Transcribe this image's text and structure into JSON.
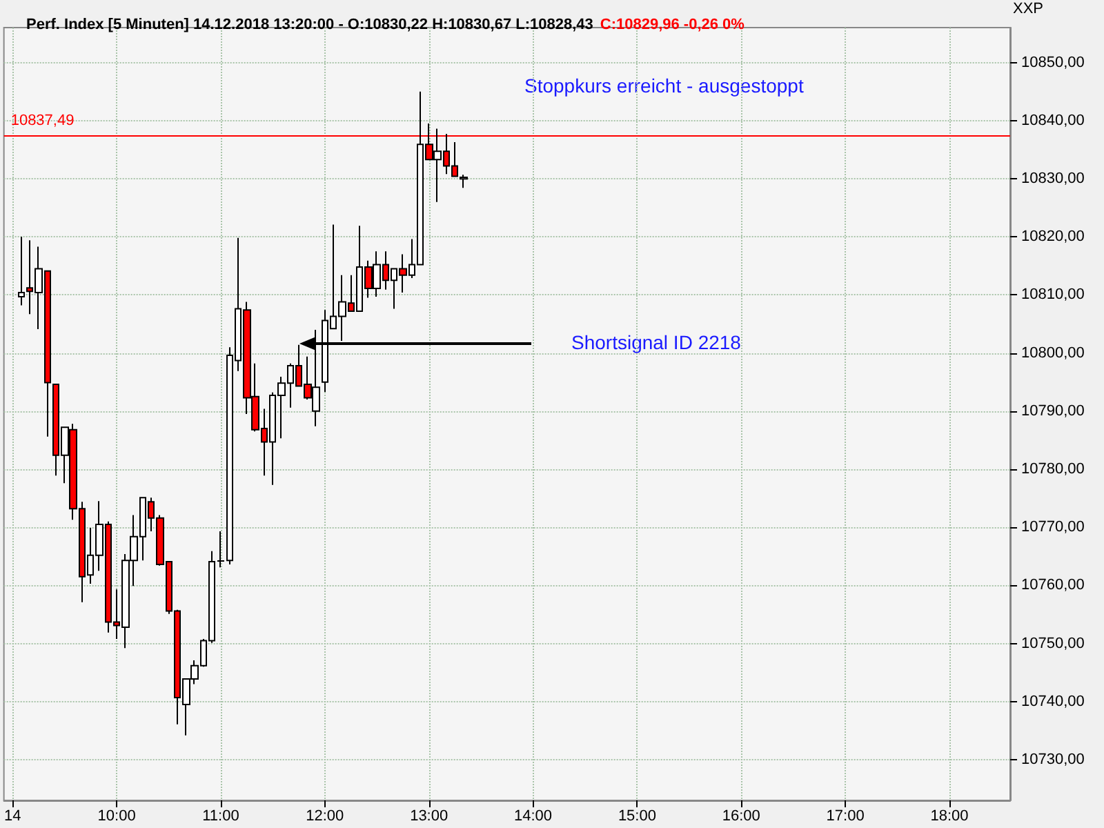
{
  "chart_data": {
    "type": "candlestick",
    "title": "Perf. Index [5 Minuten] 14.12.2018 13:20:00 - O:10830,22 H:10830,67 L:10828,43",
    "subtitle": "C:10829,96 -0,26 0%",
    "ylabel": "XXP",
    "x": [
      "2018-12-14T09:05",
      "2018-12-14T09:10",
      "2018-12-14T09:15",
      "2018-12-14T09:20",
      "2018-12-14T09:25",
      "2018-12-14T09:30",
      "2018-12-14T09:35",
      "2018-12-14T09:40",
      "2018-12-14T09:45",
      "2018-12-14T09:50",
      "2018-12-14T09:55",
      "2018-12-14T10:00",
      "2018-12-14T10:05",
      "2018-12-14T10:10",
      "2018-12-14T10:15",
      "2018-12-14T10:20",
      "2018-12-14T10:25",
      "2018-12-14T10:30",
      "2018-12-14T10:35",
      "2018-12-14T10:40",
      "2018-12-14T10:45",
      "2018-12-14T10:50",
      "2018-12-14T10:55",
      "2018-12-14T11:00",
      "2018-12-14T11:05",
      "2018-12-14T11:10",
      "2018-12-14T11:15",
      "2018-12-14T11:20",
      "2018-12-14T11:25",
      "2018-12-14T11:30",
      "2018-12-14T11:35",
      "2018-12-14T11:40",
      "2018-12-14T11:45",
      "2018-12-14T11:50",
      "2018-12-14T11:55",
      "2018-12-14T12:00",
      "2018-12-14T12:05",
      "2018-12-14T12:10",
      "2018-12-14T12:15",
      "2018-12-14T12:20",
      "2018-12-14T12:25",
      "2018-12-14T12:30",
      "2018-12-14T12:35",
      "2018-12-14T12:40",
      "2018-12-14T12:45",
      "2018-12-14T12:50",
      "2018-12-14T12:55",
      "2018-12-14T13:00",
      "2018-12-14T13:05",
      "2018-12-14T13:10",
      "2018-12-14T13:15",
      "2018-12-14T13:20"
    ],
    "ohlc": [
      [
        10809.7,
        10820.0,
        10808.2,
        10810.4
      ],
      [
        10811.2,
        10819.4,
        10806.7,
        10810.6
      ],
      [
        10810.4,
        10818.3,
        10804.1,
        10814.5
      ],
      [
        10814.1,
        10814.1,
        10785.6,
        10794.9
      ],
      [
        10794.6,
        10794.6,
        10778.9,
        10782.4
      ],
      [
        10782.4,
        10787.2,
        10777.6,
        10787.2
      ],
      [
        10786.8,
        10787.8,
        10771.3,
        10773.2
      ],
      [
        10773.2,
        10774.4,
        10757.1,
        10761.5
      ],
      [
        10761.8,
        10769.9,
        10760.3,
        10765.2
      ],
      [
        10765.2,
        10774.5,
        10762.5,
        10770.5
      ],
      [
        10770.5,
        10771.0,
        10751.9,
        10753.7
      ],
      [
        10753.7,
        10759.3,
        10750.8,
        10753.1
      ],
      [
        10752.8,
        10765.4,
        10749.2,
        10764.3
      ],
      [
        10764.3,
        10772.1,
        10759.9,
        10768.4
      ],
      [
        10768.4,
        10775.1,
        10764.3,
        10775.1
      ],
      [
        10774.4,
        10775.1,
        10769.3,
        10771.6
      ],
      [
        10771.6,
        10772.1,
        10763.4,
        10763.6
      ],
      [
        10764.1,
        10764.1,
        10755.1,
        10755.6
      ],
      [
        10755.6,
        10755.8,
        10736.1,
        10740.7
      ],
      [
        10739.5,
        10743.9,
        10734.2,
        10743.9
      ],
      [
        10743.9,
        10747.1,
        10743.0,
        10746.2
      ],
      [
        10746.2,
        10750.8,
        10746.0,
        10750.5
      ],
      [
        10750.5,
        10765.9,
        10750.1,
        10764.1
      ],
      [
        10764.2,
        10769.3,
        10763.1,
        10764.2
      ],
      [
        10764.3,
        10801.0,
        10763.6,
        10799.6
      ],
      [
        10798.7,
        10819.8,
        10796.9,
        10807.6
      ],
      [
        10807.4,
        10808.8,
        10789.5,
        10792.3
      ],
      [
        10792.5,
        10798.2,
        10786.5,
        10786.8
      ],
      [
        10787.0,
        10790.4,
        10778.9,
        10784.7
      ],
      [
        10784.7,
        10793.2,
        10777.3,
        10792.7
      ],
      [
        10792.7,
        10795.9,
        10785.3,
        10794.8
      ],
      [
        10794.8,
        10798.2,
        10790.6,
        10797.8
      ],
      [
        10797.8,
        10801.4,
        10794.3,
        10794.3
      ],
      [
        10794.6,
        10799.4,
        10792.0,
        10792.3
      ],
      [
        10790.0,
        10804.0,
        10787.4,
        10794.1
      ],
      [
        10795.0,
        10807.4,
        10793.3,
        10805.6
      ],
      [
        10804.2,
        10822.1,
        10804.2,
        10806.3
      ],
      [
        10806.3,
        10813.4,
        10802.1,
        10808.8
      ],
      [
        10808.6,
        10813.4,
        10807.2,
        10807.2
      ],
      [
        10807.2,
        10821.9,
        10807.2,
        10814.8
      ],
      [
        10814.8,
        10815.9,
        10809.5,
        10811.1
      ],
      [
        10811.1,
        10817.5,
        10809.7,
        10815.2
      ],
      [
        10815.2,
        10817.5,
        10810.9,
        10812.5
      ],
      [
        10812.5,
        10814.5,
        10807.6,
        10814.5
      ],
      [
        10814.5,
        10817.0,
        10810.4,
        10813.4
      ],
      [
        10813.4,
        10819.6,
        10812.9,
        10815.2
      ],
      [
        10815.2,
        10845.0,
        10815.2,
        10835.9
      ],
      [
        10835.9,
        10839.5,
        10833.3,
        10833.3
      ],
      [
        10833.3,
        10838.6,
        10826.0,
        10834.7
      ],
      [
        10834.7,
        10837.7,
        10830.8,
        10832.2
      ],
      [
        10832.2,
        10836.3,
        10830.4,
        10830.4
      ],
      [
        10830.22,
        10830.67,
        10828.43,
        10829.96
      ]
    ],
    "colors": [
      "#ffffff",
      "#ff0000",
      "#ffffff",
      "#ff0000",
      "#ff0000",
      "#ffffff",
      "#ff0000",
      "#ff0000",
      "#ffffff",
      "#ffffff",
      "#ff0000",
      "#ff0000",
      "#ffffff",
      "#ffffff",
      "#ffffff",
      "#ff0000",
      "#ff0000",
      "#ff0000",
      "#ff0000",
      "#ffffff",
      "#ffffff",
      "#ffffff",
      "#ffffff",
      "#000000",
      "#ffffff",
      "#ffffff",
      "#ff0000",
      "#ff0000",
      "#ff0000",
      "#ffffff",
      "#ffffff",
      "#ffffff",
      "#ff0000",
      "#ff0000",
      "#ffffff",
      "#ffffff",
      "#ffffff",
      "#ffffff",
      "#ff0000",
      "#ffffff",
      "#ff0000",
      "#ffffff",
      "#ff0000",
      "#ffffff",
      "#ff0000",
      "#ffffff",
      "#ffffff",
      "#ff0000",
      "#ffffff",
      "#ff0000",
      "#ff0000",
      "#ffffff"
    ],
    "xlim": [
      "2018-12-14T08:55",
      "2018-12-14T18:35"
    ],
    "xticks": [
      {
        "value": "2018-12-14T09:00",
        "label": "14"
      },
      {
        "value": "2018-12-14T10:00",
        "label": "10:00"
      },
      {
        "value": "2018-12-14T11:00",
        "label": "11:00"
      },
      {
        "value": "2018-12-14T12:00",
        "label": "12:00"
      },
      {
        "value": "2018-12-14T13:00",
        "label": "13:00"
      },
      {
        "value": "2018-12-14T14:00",
        "label": "14:00"
      },
      {
        "value": "2018-12-14T15:00",
        "label": "15:00"
      },
      {
        "value": "2018-12-14T16:00",
        "label": "16:00"
      },
      {
        "value": "2018-12-14T17:00",
        "label": "17:00"
      },
      {
        "value": "2018-12-14T18:00",
        "label": "18:00"
      }
    ],
    "ylim": [
      10723,
      10856
    ],
    "yticks": [
      {
        "value": 10730,
        "label": "10730,00"
      },
      {
        "value": 10740,
        "label": "10740,00"
      },
      {
        "value": 10750,
        "label": "10750,00"
      },
      {
        "value": 10760,
        "label": "10760,00"
      },
      {
        "value": 10770,
        "label": "10770,00"
      },
      {
        "value": 10780,
        "label": "10780,00"
      },
      {
        "value": 10790,
        "label": "10790,00"
      },
      {
        "value": 10800,
        "label": "10800,00"
      },
      {
        "value": 10810,
        "label": "10810,00"
      },
      {
        "value": 10820,
        "label": "10820,00"
      },
      {
        "value": 10830,
        "label": "10830,00"
      },
      {
        "value": 10840,
        "label": "10840,00"
      },
      {
        "value": 10850,
        "label": "10850,00"
      }
    ],
    "ref_lines": [
      {
        "axis": "y",
        "value": 10837.49,
        "label": "10837,49",
        "color": "#ff0000"
      }
    ],
    "annotations": [
      "Stoppkurs erreicht - ausgestoppt",
      "Shortsignal ID 2218"
    ],
    "grid": true
  }
}
